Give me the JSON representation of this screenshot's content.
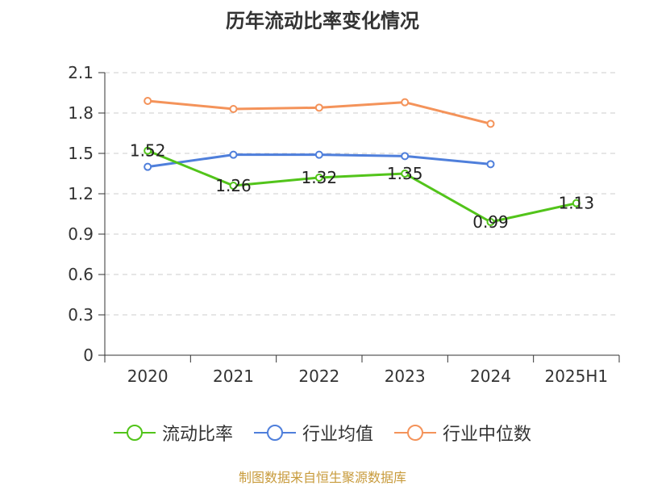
{
  "chart_data": {
    "type": "line",
    "title": "历年流动比率变化情况",
    "categories": [
      "2020",
      "2021",
      "2022",
      "2023",
      "2024",
      "2025H1"
    ],
    "ylim": [
      0,
      2.1
    ],
    "yticks": [
      "0",
      "0.3",
      "0.6",
      "0.9",
      "1.2",
      "1.5",
      "1.8",
      "2.1"
    ],
    "grid": true,
    "legend_position": "bottom",
    "series": [
      {
        "name": "流动比率",
        "color": "#52c41a",
        "values": [
          1.52,
          1.26,
          1.32,
          1.35,
          0.99,
          1.13
        ],
        "labels": [
          "1.52",
          "1.26",
          "1.32",
          "1.35",
          "0.99",
          "1.13"
        ]
      },
      {
        "name": "行业均值",
        "color": "#4f7fdb",
        "values": [
          1.4,
          1.49,
          1.49,
          1.48,
          1.42,
          null
        ]
      },
      {
        "name": "行业中位数",
        "color": "#f4935a",
        "values": [
          1.89,
          1.83,
          1.84,
          1.88,
          1.72,
          null
        ]
      }
    ]
  },
  "source": "制图数据来自恒生聚源数据库"
}
